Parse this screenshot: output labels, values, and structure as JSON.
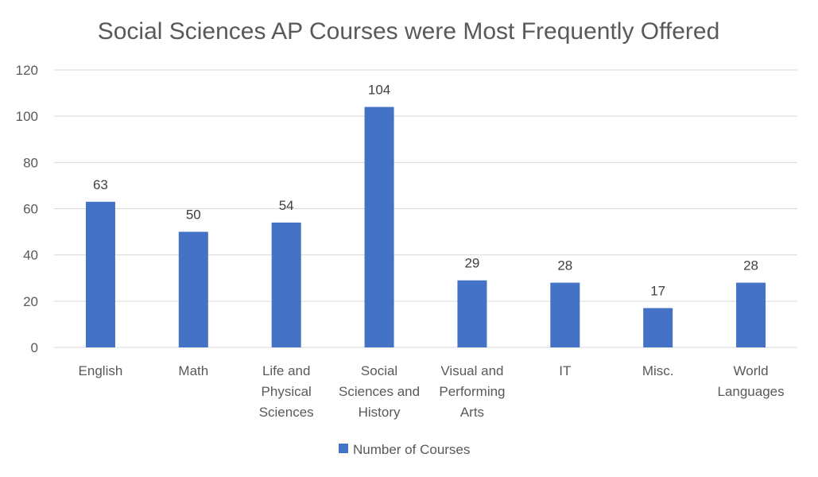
{
  "chart_data": {
    "type": "bar",
    "title": "Social Sciences AP Courses were Most Frequently Offered",
    "xlabel": "",
    "ylabel": "",
    "categories": [
      [
        "English"
      ],
      [
        "Math"
      ],
      [
        "Life and",
        "Physical",
        "Sciences"
      ],
      [
        "Social",
        "Sciences and",
        "History"
      ],
      [
        "Visual and",
        "Performing",
        "Arts"
      ],
      [
        "IT"
      ],
      [
        "Misc."
      ],
      [
        "World",
        "Languages"
      ]
    ],
    "series": [
      {
        "name": "Number of Courses",
        "values": [
          63,
          50,
          54,
          104,
          29,
          28,
          17,
          28
        ],
        "color": "#4472C4"
      }
    ],
    "ylim": [
      0,
      120
    ],
    "yticks": [
      "0",
      "20",
      "40",
      "60",
      "80",
      "100",
      "120"
    ],
    "grid": true,
    "gridColor": "#d9d9d9",
    "legend_position": "bottom",
    "data_labels": true
  }
}
